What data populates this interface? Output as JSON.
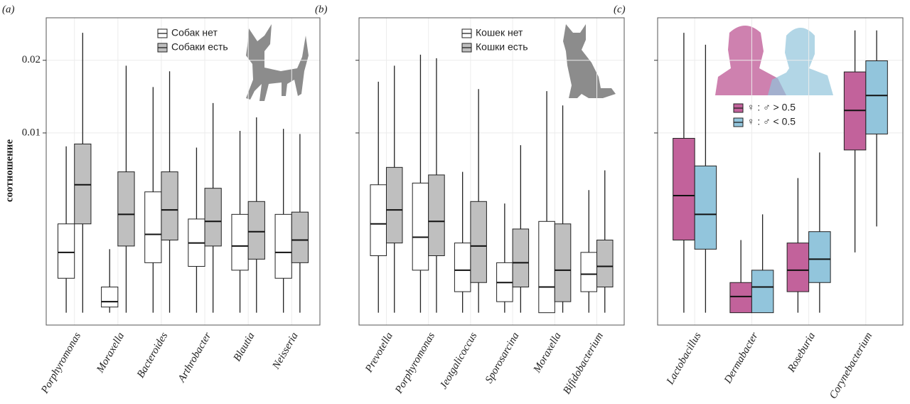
{
  "chart_data": [
    {
      "type": "box",
      "label": "(a)",
      "ylabel": "соотношение",
      "yscale": "log",
      "grid": true,
      "legend": "upper right",
      "ylim": [
        0.0016,
        0.03
      ],
      "yticks": [
        0.01,
        0.02
      ],
      "ytick_labels": true,
      "categories": [
        "Porphyromonas",
        "Moraxella",
        "Bacteroides",
        "Arthrobacter",
        "Blautia",
        "Neisseria"
      ],
      "series": [
        {
          "name": "Собак нет",
          "color": "#ffffff",
          "values": [
            [
              0.0018,
              0.0025,
              0.0032,
              0.0042,
              0.0088
            ],
            [
              0.0018,
              0.0019,
              0.002,
              0.0023,
              0.0033
            ],
            [
              0.0018,
              0.0029,
              0.0038,
              0.0057,
              0.0155
            ],
            [
              0.0018,
              0.0028,
              0.0035,
              0.0044,
              0.0087
            ],
            [
              0.0018,
              0.0027,
              0.0034,
              0.0046,
              0.0102
            ],
            [
              0.0018,
              0.0025,
              0.0032,
              0.0046,
              0.0104
            ]
          ]
        },
        {
          "name": "Собаки есть",
          "color": "#bfbfbf",
          "values": [
            [
              0.0018,
              0.0042,
              0.0061,
              0.009,
              0.026
            ],
            [
              0.0018,
              0.0034,
              0.0046,
              0.0069,
              0.019
            ],
            [
              0.0018,
              0.0036,
              0.0048,
              0.0069,
              0.018
            ],
            [
              0.0018,
              0.0034,
              0.0043,
              0.0059,
              0.0133
            ],
            [
              0.0018,
              0.003,
              0.0039,
              0.0052,
              0.0116
            ],
            [
              0.0018,
              0.0029,
              0.0036,
              0.0047,
              0.0099
            ]
          ]
        }
      ]
    },
    {
      "type": "box",
      "label": "(b)",
      "yscale": "log",
      "grid": true,
      "legend": "upper right",
      "ylim": [
        0.0016,
        0.03
      ],
      "yticks": [
        0.01,
        0.02
      ],
      "ytick_labels": false,
      "categories": [
        "Prevotella",
        "Porphyromonas",
        "Jeotgalicoccus",
        "Sporosarcina",
        "Moraxella",
        "Bifidobacterium"
      ],
      "series": [
        {
          "name": "Кошек нет",
          "color": "#ffffff",
          "values": [
            [
              0.0018,
              0.0031,
              0.0042,
              0.0061,
              0.0163
            ],
            [
              0.0018,
              0.0027,
              0.0037,
              0.0062,
              0.0211
            ],
            [
              0.0018,
              0.0022,
              0.0027,
              0.0035,
              0.0069
            ],
            [
              0.0018,
              0.002,
              0.0024,
              0.0029,
              0.0051
            ],
            [
              0.0018,
              0.0018,
              0.0023,
              0.0043,
              0.0149
            ],
            [
              0.0018,
              0.0022,
              0.0026,
              0.0032,
              0.0058
            ]
          ]
        },
        {
          "name": "Кошки есть",
          "color": "#bfbfbf",
          "values": [
            [
              0.0018,
              0.0035,
              0.0048,
              0.0072,
              0.019
            ],
            [
              0.0018,
              0.0031,
              0.0043,
              0.0067,
              0.0204
            ],
            [
              0.0018,
              0.0024,
              0.0034,
              0.0052,
              0.0152
            ],
            [
              0.0018,
              0.0023,
              0.0029,
              0.004,
              0.0089
            ],
            [
              0.0018,
              0.002,
              0.0027,
              0.0042,
              0.013
            ],
            [
              0.0018,
              0.0023,
              0.0028,
              0.0036,
              0.007
            ]
          ]
        }
      ]
    },
    {
      "type": "box",
      "label": "(c)",
      "yscale": "log",
      "grid": true,
      "legend": "upper center",
      "ylim": [
        0.0016,
        0.03
      ],
      "yticks": [
        0.01,
        0.02
      ],
      "ytick_labels": false,
      "categories": [
        "Lactobacillus",
        "Dermabacter",
        "Roseburia",
        "Corynebacterium"
      ],
      "series": [
        {
          "name": "♀ : ♂  > 0.5",
          "color": "#c2629b",
          "values": [
            [
              0.0018,
              0.0036,
              0.0055,
              0.0095,
              0.026
            ],
            [
              0.0018,
              0.0018,
              0.0021,
              0.0024,
              0.0036
            ],
            [
              0.0018,
              0.0022,
              0.0027,
              0.0035,
              0.0065
            ],
            [
              0.0032,
              0.0085,
              0.0124,
              0.0179,
              0.0266
            ]
          ]
        },
        {
          "name": "♀ : ♂  < 0.5",
          "color": "#92c5dc",
          "values": [
            [
              0.0018,
              0.0033,
              0.0046,
              0.0073,
              0.0232
            ],
            [
              0.0018,
              0.0018,
              0.0023,
              0.0027,
              0.0046
            ],
            [
              0.0018,
              0.0024,
              0.003,
              0.0039,
              0.0083
            ],
            [
              0.0041,
              0.0099,
              0.0143,
              0.0199,
              0.0266
            ]
          ]
        }
      ]
    }
  ]
}
